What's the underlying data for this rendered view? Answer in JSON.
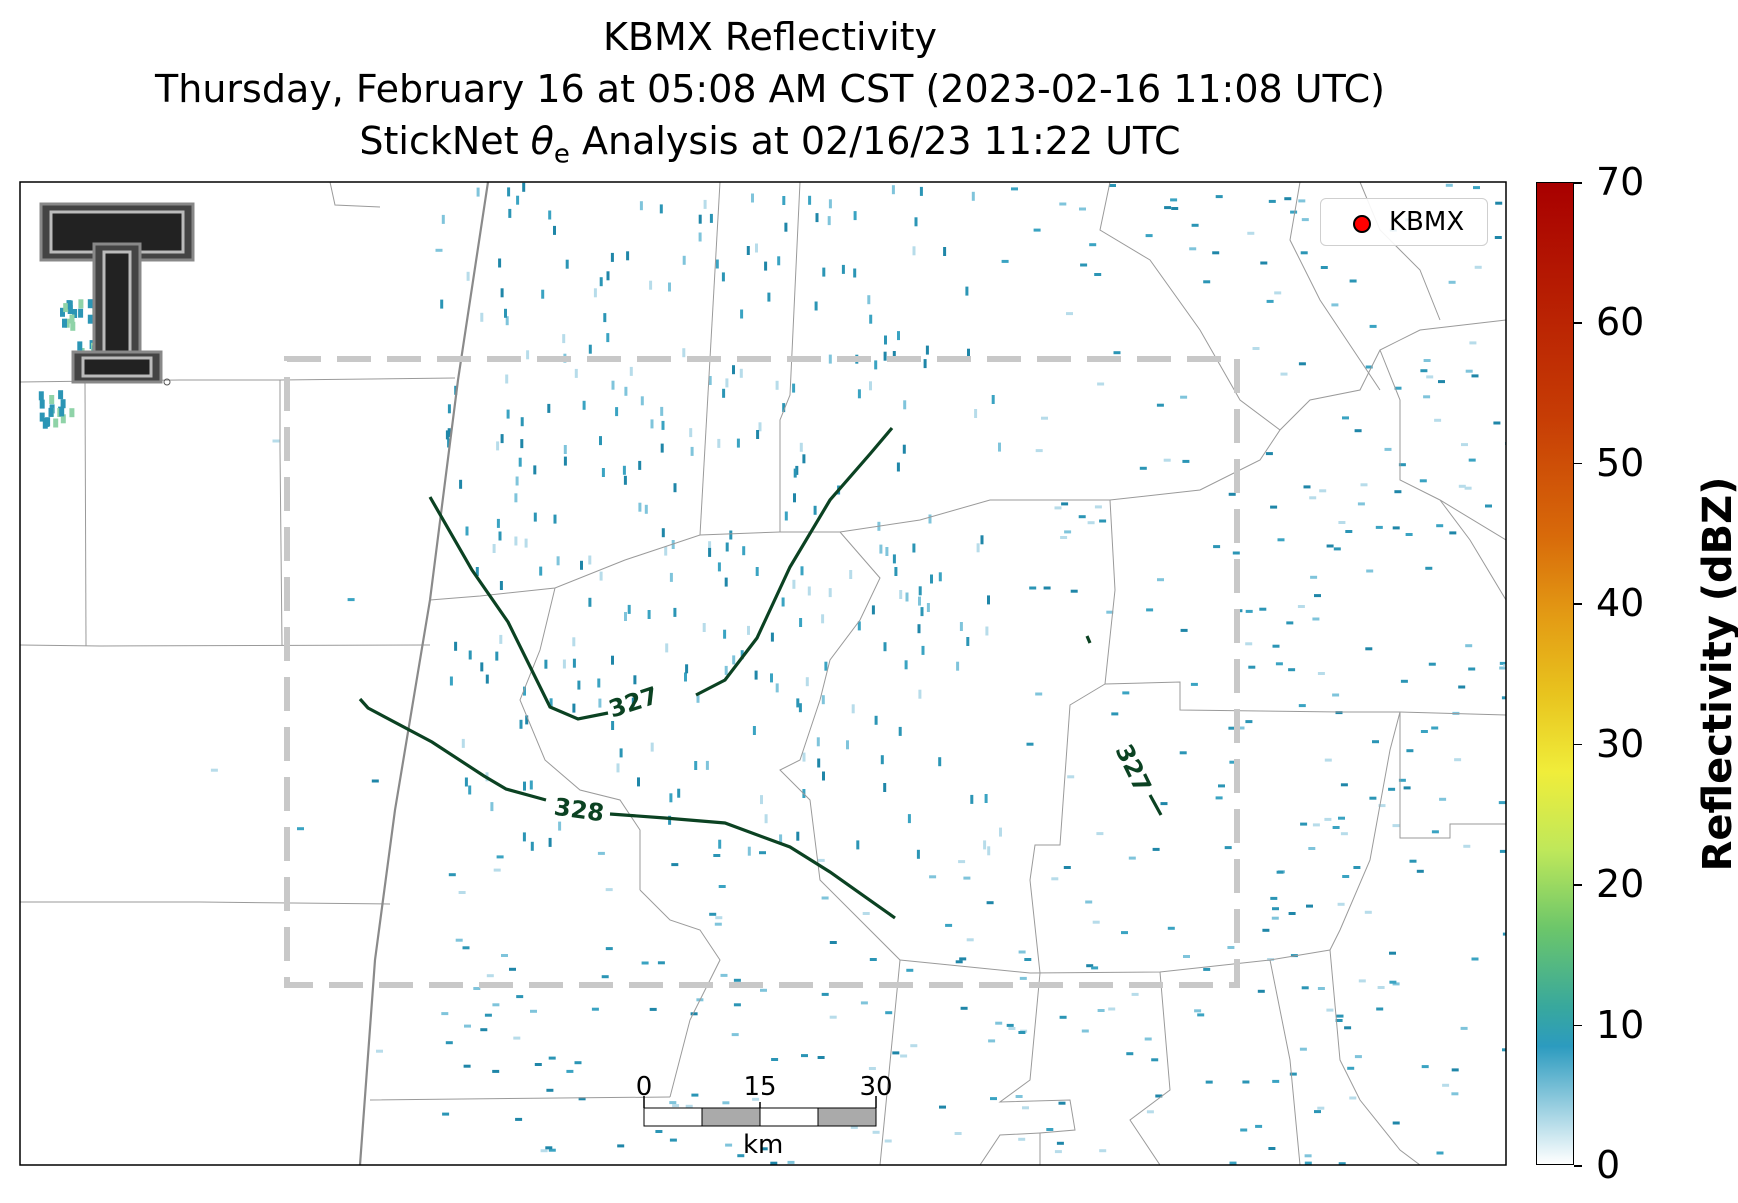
{
  "title": {
    "line1": "KBMX Reflectivity",
    "line2": "Thursday, February 16 at 05:08 AM CST (2023-02-16 11:08 UTC)",
    "line3_prefix": "StickNet ",
    "line3_symbol": "θ",
    "line3_sub": "e",
    "line3_suffix": " Analysis at 02/16/23 11:22 UTC"
  },
  "legend": {
    "label": "KBMX",
    "marker_color": "#ff0000"
  },
  "contours": [
    {
      "label": "327",
      "color": "#0b4222"
    },
    {
      "label": "328",
      "color": "#0b4222"
    },
    {
      "label": "327",
      "color": "#0b4222"
    }
  ],
  "scale_bar": {
    "ticks": [
      "0",
      "15",
      "30"
    ],
    "unit": "km"
  },
  "colorbar": {
    "label": "Reflectivity (dBZ)",
    "min": 0,
    "max": 70,
    "ticks": [
      "0",
      "10",
      "20",
      "30",
      "40",
      "50",
      "60",
      "70"
    ],
    "colors": [
      "#ffffff",
      "#2c9bbf",
      "#6cc66a",
      "#f0ed3a",
      "#e39a14",
      "#a80000"
    ]
  },
  "colors": {
    "analysis_box": "#c8c8c8",
    "county_lines": "#9a9a9a",
    "contour": "#0b4222",
    "echo": "#2b95b5"
  },
  "icons": {
    "logo": "texas-tech-double-t-logo"
  }
}
